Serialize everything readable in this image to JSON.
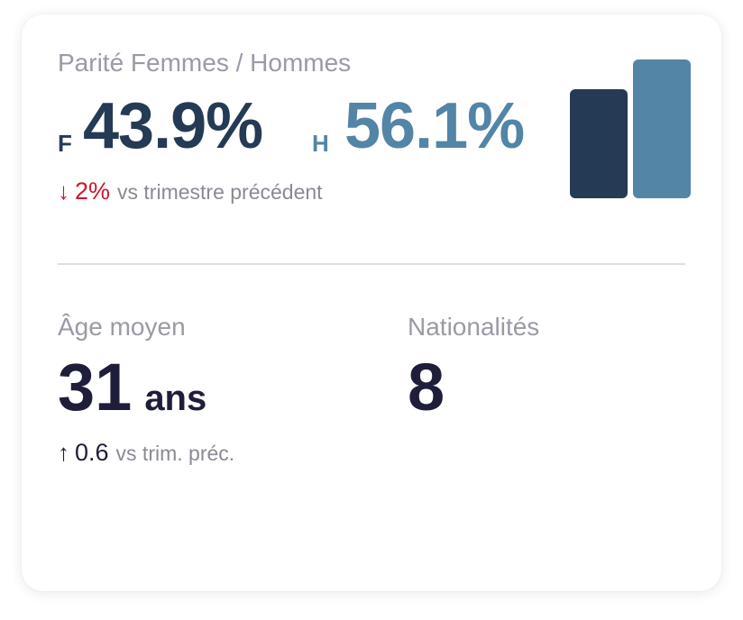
{
  "parity": {
    "title": "Parité Femmes / Hommes",
    "female_letter": "F",
    "female_value": "43.9%",
    "male_letter": "H",
    "male_value": "56.1%",
    "female_share": 43.9,
    "male_share": 56.1,
    "delta_arrow": "↓",
    "delta_value": "2%",
    "delta_text": "vs trimestre précédent",
    "female_color": "#253a54",
    "male_color": "#5285a6",
    "delta_color": "#d0142c"
  },
  "age": {
    "title": "Âge moyen",
    "value": "31",
    "unit": "ans",
    "delta_arrow": "↑",
    "delta_value": "0.6",
    "delta_text": "vs trim. préc."
  },
  "nationalities": {
    "title": "Nationalités",
    "value": "8"
  }
}
